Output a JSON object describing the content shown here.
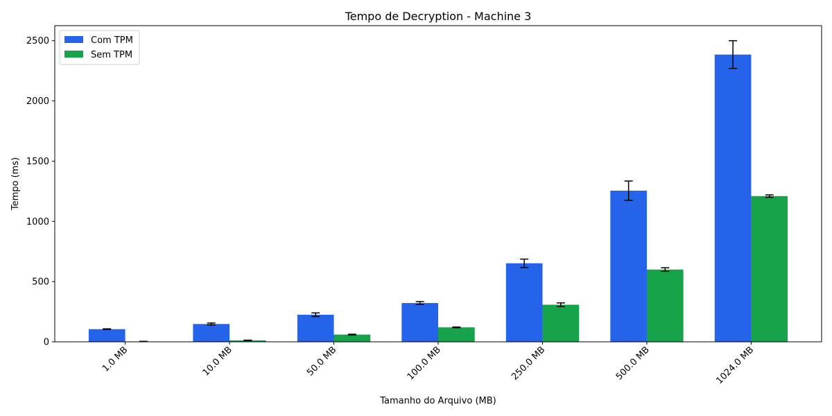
{
  "chart_data": {
    "type": "bar",
    "title": "Tempo de Decryption - Machine 3",
    "xlabel": "Tamanho do Arquivo (MB)",
    "ylabel": "Tempo (ms)",
    "categories": [
      "1.0 MB",
      "10.0 MB",
      "50.0 MB",
      "100.0 MB",
      "250.0 MB",
      "500.0 MB",
      "1024.0 MB"
    ],
    "series": [
      {
        "name": "Com TPM",
        "color": "#2563eb",
        "values": [
          105,
          148,
          225,
          322,
          652,
          1255,
          2385
        ],
        "errors": [
          3,
          8,
          15,
          12,
          35,
          80,
          115
        ]
      },
      {
        "name": "Sem TPM",
        "color": "#16a34a",
        "values": [
          3,
          12,
          60,
          120,
          308,
          600,
          1210
        ],
        "errors": [
          1,
          2,
          3,
          3,
          15,
          15,
          10
        ]
      }
    ],
    "ylim": [
      0,
      2625
    ],
    "yticks": [
      0,
      500,
      1000,
      1500,
      2000,
      2500
    ],
    "legend": "top-left",
    "grid": false
  }
}
